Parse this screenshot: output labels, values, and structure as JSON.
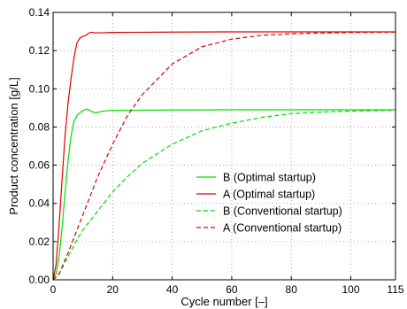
{
  "chart_data": {
    "type": "line",
    "xlabel": "Cycle number [–]",
    "ylabel": "Product concentration [g/L]",
    "xlim": [
      0,
      115
    ],
    "ylim": [
      0,
      0.14
    ],
    "x_ticks": [
      "0",
      "20",
      "40",
      "60",
      "80",
      "100",
      "115"
    ],
    "y_ticks": [
      "0.00",
      "0.02",
      "0.04",
      "0.06",
      "0.08",
      "0.10",
      "0.12",
      "0.14"
    ],
    "grid": true,
    "legend_position": "lower-right",
    "series": [
      {
        "name": "B (Optimal startup)",
        "color": "#00dd00",
        "dash": "solid",
        "x": [
          0,
          1,
          2,
          3,
          4,
          5,
          6,
          7,
          8,
          9,
          10,
          11,
          12,
          13,
          14,
          15,
          16,
          18,
          20,
          30,
          40,
          60,
          80,
          100,
          115
        ],
        "y": [
          0,
          0.003,
          0.012,
          0.027,
          0.045,
          0.062,
          0.075,
          0.083,
          0.086,
          0.0875,
          0.0885,
          0.0893,
          0.089,
          0.088,
          0.0875,
          0.0876,
          0.0881,
          0.0885,
          0.0887,
          0.0888,
          0.0889,
          0.089,
          0.089,
          0.089,
          0.089
        ]
      },
      {
        "name": "A (Optimal startup)",
        "color": "#dd0000",
        "dash": "solid",
        "x": [
          0,
          1,
          2,
          3,
          4,
          5,
          6,
          7,
          8,
          9,
          10,
          11,
          12,
          13,
          14,
          16,
          18,
          20,
          30,
          40,
          60,
          80,
          100,
          115
        ],
        "y": [
          0,
          0.008,
          0.028,
          0.052,
          0.075,
          0.092,
          0.105,
          0.116,
          0.124,
          0.1265,
          0.1275,
          0.128,
          0.1292,
          0.1296,
          0.1293,
          0.1293,
          0.1294,
          0.1295,
          0.1296,
          0.1297,
          0.1298,
          0.1298,
          0.1298,
          0.1298
        ]
      },
      {
        "name": "B (Conventional startup)",
        "color": "#00dd00",
        "dash": "dashed",
        "x": [
          0,
          2,
          5,
          8,
          10,
          15,
          20,
          25,
          30,
          40,
          50,
          60,
          70,
          80,
          90,
          100,
          115
        ],
        "y": [
          0,
          0.003,
          0.012,
          0.021,
          0.026,
          0.036,
          0.046,
          0.054,
          0.061,
          0.071,
          0.078,
          0.082,
          0.085,
          0.087,
          0.0878,
          0.0883,
          0.0888
        ]
      },
      {
        "name": "A (Conventional startup)",
        "color": "#dd0000",
        "dash": "dashed",
        "x": [
          0,
          2,
          5,
          8,
          10,
          15,
          20,
          25,
          30,
          40,
          50,
          60,
          70,
          80,
          90,
          100,
          115
        ],
        "y": [
          0,
          0.003,
          0.014,
          0.026,
          0.034,
          0.054,
          0.071,
          0.086,
          0.097,
          0.113,
          0.122,
          0.126,
          0.128,
          0.1288,
          0.1292,
          0.1295,
          0.1297
        ]
      }
    ]
  }
}
